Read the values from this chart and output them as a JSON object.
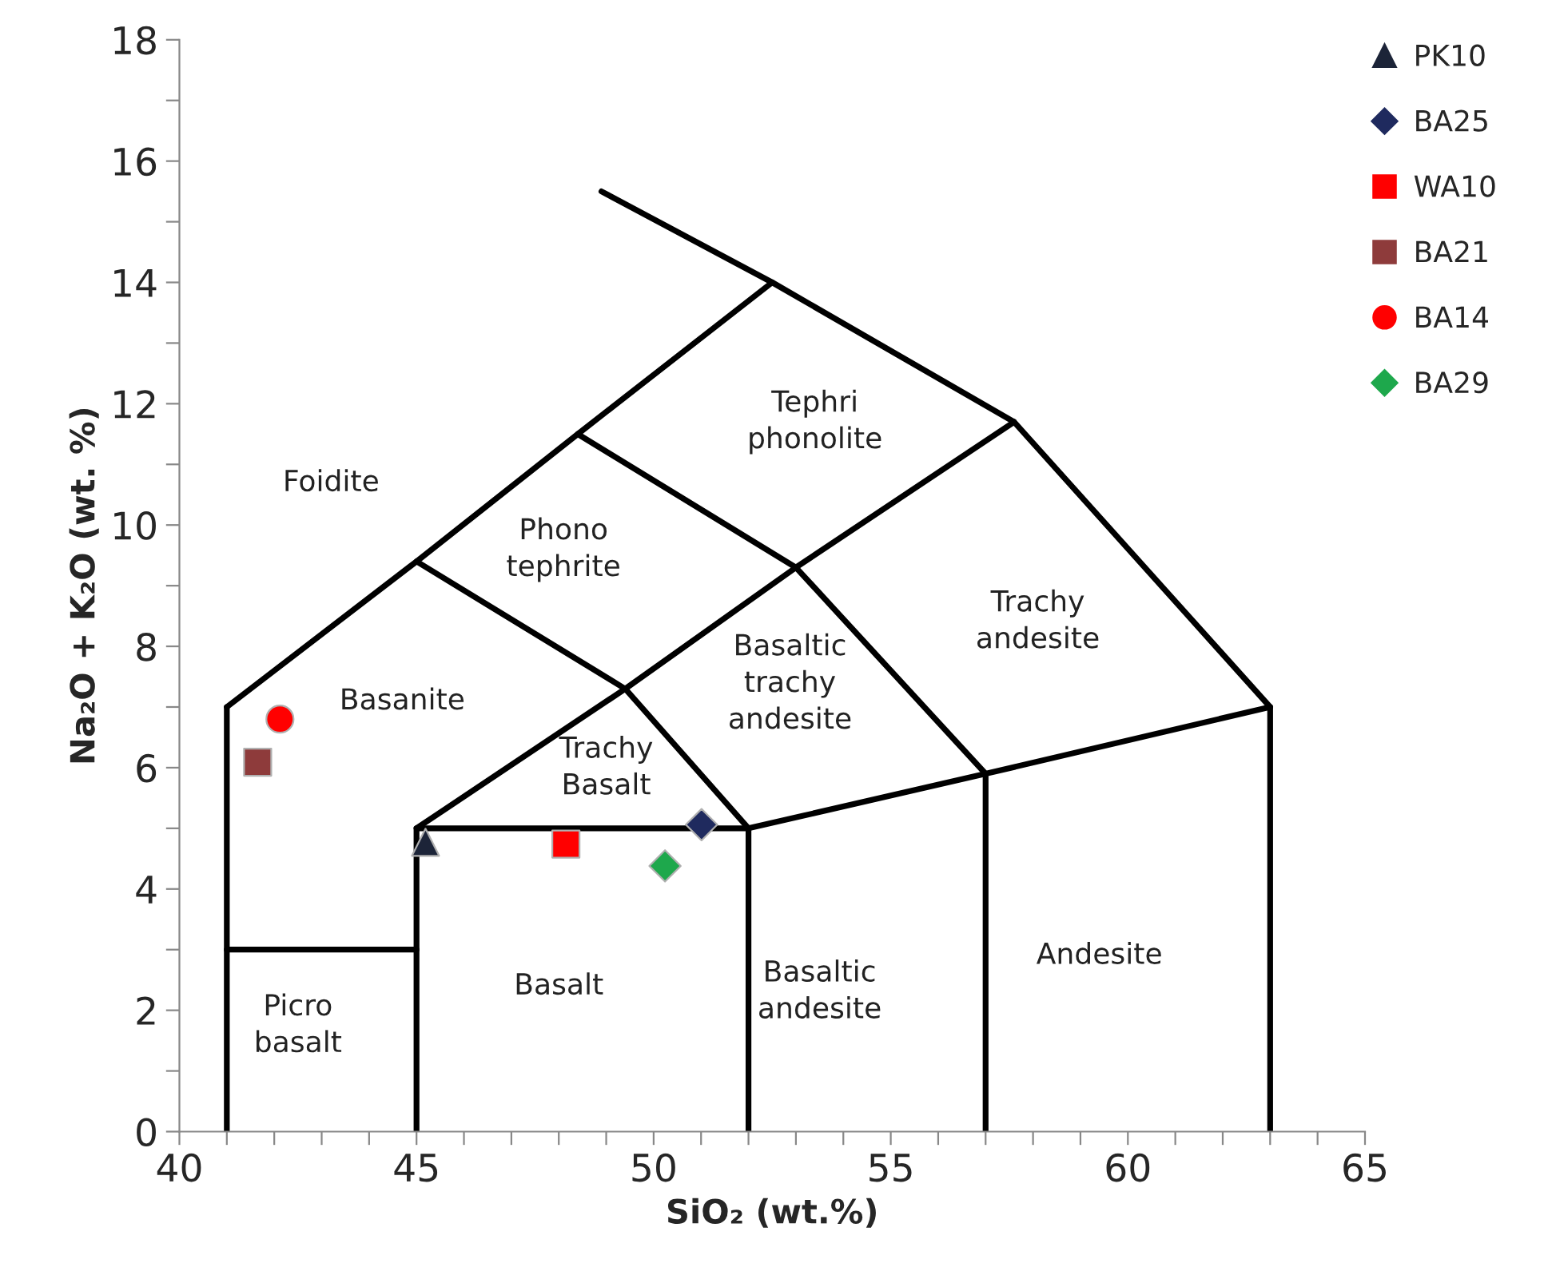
{
  "chart_data": {
    "type": "scatter",
    "xlabel": "SiO₂ (wt.%)",
    "ylabel": "Na₂O + K₂O (wt. %)",
    "xlim": [
      40,
      65
    ],
    "ylim": [
      0,
      18
    ],
    "xticks": [
      40,
      {
        "value": 41,
        "label": null
      },
      {
        "value": 42,
        "label": null
      },
      {
        "value": 43,
        "label": null
      },
      {
        "value": 44,
        "label": null
      },
      45,
      {
        "value": 46,
        "label": null
      },
      {
        "value": 47,
        "label": null
      },
      {
        "value": 48,
        "label": null
      },
      {
        "value": 49,
        "label": null
      },
      50,
      {
        "value": 51,
        "label": null
      },
      {
        "value": 52,
        "label": null
      },
      {
        "value": 53,
        "label": null
      },
      {
        "value": 54,
        "label": null
      },
      55,
      {
        "value": 56,
        "label": null
      },
      {
        "value": 57,
        "label": null
      },
      {
        "value": 58,
        "label": null
      },
      {
        "value": 59,
        "label": null
      },
      60,
      {
        "value": 61,
        "label": null
      },
      {
        "value": 62,
        "label": null
      },
      {
        "value": 63,
        "label": null
      },
      {
        "value": 64,
        "label": null
      },
      65
    ],
    "yticks": [
      0,
      {
        "value": 1,
        "label": null
      },
      2,
      {
        "value": 3,
        "label": null
      },
      4,
      {
        "value": 5,
        "label": null
      },
      6,
      {
        "value": 7,
        "label": null
      },
      8,
      {
        "value": 9,
        "label": null
      },
      10,
      {
        "value": 11,
        "label": null
      },
      12,
      {
        "value": 13,
        "label": null
      },
      14,
      {
        "value": 15,
        "label": null
      },
      16,
      {
        "value": 17,
        "label": null
      },
      18
    ],
    "grid": false,
    "legend": "top right",
    "series": [
      {
        "type": "line",
        "color": "#000000",
        "x": [
          41,
          41
        ],
        "values": [
          0,
          7
        ]
      },
      {
        "type": "line",
        "color": "#000000",
        "x": [
          41,
          45
        ],
        "values": [
          3,
          3
        ]
      },
      {
        "type": "line",
        "color": "#000000",
        "x": [
          45,
          45,
          52,
          52
        ],
        "values": [
          0,
          5,
          5,
          0
        ]
      },
      {
        "type": "line",
        "color": "#000000",
        "x": [
          57,
          57
        ],
        "values": [
          0,
          5.9
        ]
      },
      {
        "type": "line",
        "color": "#000000",
        "x": [
          63,
          63
        ],
        "values": [
          0,
          7
        ]
      },
      {
        "type": "line",
        "color": "#000000",
        "x": [
          52,
          57,
          63
        ],
        "values": [
          5,
          5.9,
          7
        ]
      },
      {
        "type": "line",
        "color": "#000000",
        "x": [
          45,
          49.4,
          53,
          57.6
        ],
        "values": [
          5,
          7.3,
          9.3,
          11.7
        ]
      },
      {
        "type": "line",
        "color": "#000000",
        "x": [
          41,
          45,
          48.4,
          52.5,
          48.9
        ],
        "values": [
          7,
          9.4,
          11.5,
          14,
          15.5
        ]
      },
      {
        "type": "line",
        "color": "#000000",
        "x": [
          52.5,
          57.6,
          63
        ],
        "values": [
          14,
          11.7,
          7
        ]
      },
      {
        "type": "line",
        "color": "#000000",
        "x": [
          52,
          49.4,
          45
        ],
        "values": [
          5,
          7.3,
          9.4
        ]
      },
      {
        "type": "line",
        "color": "#000000",
        "x": [
          48.4,
          53,
          57
        ],
        "values": [
          11.5,
          9.3,
          5.9
        ]
      },
      {
        "name": "PK10",
        "marker": "triangle",
        "color": "#1c2438",
        "x": [
          45.19
        ],
        "values": [
          4.77
        ]
      },
      {
        "name": "BA25",
        "marker": "diamond",
        "color": "#1f2a5e",
        "x": [
          51.01
        ],
        "values": [
          5.06
        ]
      },
      {
        "name": "WA10",
        "marker": "square",
        "color": "#ff0000",
        "x": [
          48.15
        ],
        "values": [
          4.74
        ]
      },
      {
        "name": "BA21",
        "marker": "square",
        "color": "#8e3b3b",
        "x": [
          41.65
        ],
        "values": [
          6.09
        ]
      },
      {
        "name": "BA14",
        "marker": "circle",
        "color": "#ff0000",
        "x": [
          42.12
        ],
        "values": [
          6.8
        ]
      },
      {
        "name": "BA29",
        "marker": "diamond",
        "color": "#1ea84c",
        "x": [
          50.24
        ],
        "values": [
          4.38
        ]
      }
    ],
    "annotations": [
      "Foidite",
      "Tephri\nphonolite",
      "Phono\ntephrite",
      "Trachy\nandesite",
      "Basanite",
      "Basaltic\ntrachy\nandesite",
      "Trachy\nBasalt",
      "Picro\nbasalt",
      "Basalt",
      "Basaltic\nandesite",
      "Andesite"
    ]
  }
}
